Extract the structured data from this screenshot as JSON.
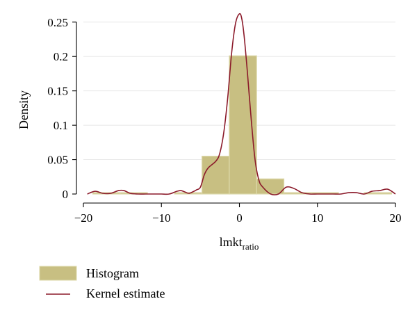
{
  "chart_data": {
    "type": "bar",
    "xlabel_main": "lmkt",
    "xlabel_sub": "ratio",
    "ylabel": "Density",
    "xlim": [
      -20,
      20
    ],
    "ylim": [
      0,
      0.27
    ],
    "xticks": [
      -20,
      -10,
      0,
      10,
      20
    ],
    "xtick_labels": [
      "−20",
      "−10",
      "0",
      "10",
      "20"
    ],
    "yticks": [
      0,
      0.05,
      0.1,
      0.15,
      0.2,
      0.25
    ],
    "ytick_labels": [
      "0",
      "0.05",
      "0.1",
      "0.15",
      "0.2",
      "0.25"
    ],
    "grid": true,
    "colors": {
      "bar_fill": "#c8bf82",
      "bar_stroke": "#ddd8aa",
      "kde_line": "#8b1a2a"
    },
    "histogram": {
      "name": "Histogram",
      "bins": [
        {
          "x0": -18.8,
          "x1": -15.3,
          "density": 0.002
        },
        {
          "x0": -15.3,
          "x1": -11.8,
          "density": 0.002
        },
        {
          "x0": -8.3,
          "x1": -4.8,
          "density": 0.002
        },
        {
          "x0": -4.8,
          "x1": -1.3,
          "density": 0.055
        },
        {
          "x0": -1.3,
          "x1": 2.2,
          "density": 0.201
        },
        {
          "x0": 2.2,
          "x1": 5.7,
          "density": 0.022
        },
        {
          "x0": 5.7,
          "x1": 9.2,
          "density": 0.002
        },
        {
          "x0": 9.2,
          "x1": 12.7,
          "density": 0.002
        },
        {
          "x0": 16.0,
          "x1": 19.5,
          "density": 0.002
        }
      ]
    },
    "kernel": {
      "name": "Kernel estimate",
      "x": [
        -19.5,
        -18.5,
        -17.5,
        -16.5,
        -15.5,
        -14.8,
        -14.0,
        -13.0,
        -12.0,
        -11.0,
        -10.0,
        -9.0,
        -8.0,
        -7.5,
        -7.0,
        -6.5,
        -6.0,
        -5.5,
        -5.0,
        -4.5,
        -4.0,
        -3.0,
        -2.5,
        -2.0,
        -1.5,
        -1.0,
        -0.5,
        0.0,
        0.3,
        0.6,
        1.0,
        1.5,
        2.0,
        2.5,
        3.0,
        4.0,
        5.0,
        6.0,
        7.0,
        8.0,
        9.0,
        10.0,
        11.0,
        12.0,
        13.0,
        14.0,
        15.0,
        16.0,
        17.0,
        18.0,
        19.0,
        20.0
      ],
      "y": [
        0.0,
        0.004,
        0.001,
        0.001,
        0.005,
        0.005,
        0.001,
        0.0,
        0.0,
        0.0,
        0.0,
        0.0,
        0.004,
        0.005,
        0.003,
        0.001,
        0.003,
        0.006,
        0.01,
        0.028,
        0.038,
        0.048,
        0.06,
        0.09,
        0.14,
        0.205,
        0.248,
        0.262,
        0.255,
        0.23,
        0.18,
        0.11,
        0.05,
        0.02,
        0.01,
        0.0,
        0.0,
        0.01,
        0.008,
        0.002,
        0.0,
        0.0,
        0.0,
        0.0,
        0.0,
        0.002,
        0.002,
        0.0,
        0.004,
        0.005,
        0.007,
        0.0
      ]
    }
  }
}
